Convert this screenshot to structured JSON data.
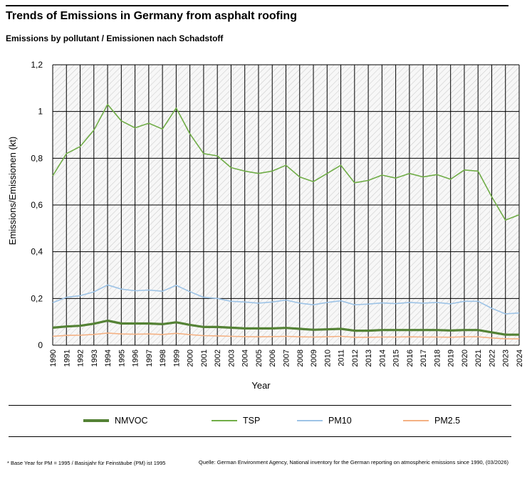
{
  "header": {
    "title": "Trends of Emissions in Germany from asphalt roofing",
    "subtitle": "Emissions by pollutant / Emissionen nach Schadstoff"
  },
  "footer": {
    "note": "* Base Year for PM = 1995 / Basisjahr für Feinstäube (PM) ist 1995",
    "source": "Quelle: German Environment Agency, National inventory for the German reporting on atmospheric emissions since 1990, (03/2026)"
  },
  "chart_data": {
    "type": "line",
    "title": "Trends of Emissions in Germany from asphalt roofing",
    "xlabel": "Year",
    "ylabel": "Emissions/Emissionen (kt)",
    "ylim": [
      0,
      1.2
    ],
    "yticks": [
      0,
      0.2,
      0.4,
      0.6,
      0.8,
      1,
      1.2
    ],
    "ytick_labels": [
      "0",
      "0,2",
      "0,4",
      "0,6",
      "0,8",
      "1",
      "1,2"
    ],
    "grid": true,
    "legend_position": "bottom",
    "categories": [
      "1990",
      "1991",
      "1992",
      "1993",
      "1994",
      "1995",
      "1996",
      "1997",
      "1998",
      "1999",
      "2000",
      "2001",
      "2002",
      "2003",
      "2004",
      "2005",
      "2006",
      "2007",
      "2008",
      "2009",
      "2010",
      "2011",
      "2012",
      "2013",
      "2014",
      "2015",
      "2016",
      "2017",
      "2018",
      "2019",
      "2020",
      "2021",
      "2022",
      "2023",
      "2024"
    ],
    "series": [
      {
        "name": "NMVOC",
        "color": "#548235",
        "width": 3.2,
        "values": [
          0.075,
          0.08,
          0.083,
          0.092,
          0.105,
          0.093,
          0.093,
          0.093,
          0.09,
          0.098,
          0.087,
          0.078,
          0.078,
          0.075,
          0.072,
          0.072,
          0.072,
          0.074,
          0.07,
          0.066,
          0.068,
          0.07,
          0.062,
          0.062,
          0.065,
          0.065,
          0.065,
          0.065,
          0.065,
          0.063,
          0.065,
          0.065,
          0.055,
          0.045,
          0.045
        ]
      },
      {
        "name": "TSP",
        "color": "#70ad47",
        "width": 1.6,
        "values": [
          0.725,
          0.82,
          0.85,
          0.92,
          1.03,
          0.96,
          0.93,
          0.95,
          0.925,
          1.015,
          0.905,
          0.82,
          0.81,
          0.76,
          0.745,
          0.735,
          0.745,
          0.77,
          0.72,
          0.7,
          0.735,
          0.77,
          0.695,
          0.705,
          0.728,
          0.715,
          0.735,
          0.72,
          0.73,
          0.71,
          0.75,
          0.745,
          0.635,
          0.535,
          0.558
        ]
      },
      {
        "name": "PM10",
        "color": "#9dc3e6",
        "width": 1.6,
        "values": [
          0.182,
          0.205,
          0.212,
          0.228,
          0.258,
          0.24,
          0.233,
          0.236,
          0.231,
          0.256,
          0.229,
          0.205,
          0.2,
          0.188,
          0.185,
          0.18,
          0.185,
          0.193,
          0.18,
          0.173,
          0.183,
          0.19,
          0.173,
          0.176,
          0.181,
          0.178,
          0.183,
          0.18,
          0.183,
          0.177,
          0.188,
          0.188,
          0.158,
          0.134,
          0.138
        ]
      },
      {
        "name": "PM2.5",
        "color": "#f4b183",
        "width": 1.6,
        "values": [
          0.038,
          0.042,
          0.043,
          0.046,
          0.052,
          0.048,
          0.047,
          0.048,
          0.046,
          0.051,
          0.045,
          0.041,
          0.04,
          0.038,
          0.037,
          0.036,
          0.037,
          0.038,
          0.036,
          0.035,
          0.036,
          0.038,
          0.034,
          0.034,
          0.035,
          0.035,
          0.036,
          0.035,
          0.035,
          0.034,
          0.036,
          0.036,
          0.031,
          0.027,
          0.027
        ]
      }
    ]
  }
}
